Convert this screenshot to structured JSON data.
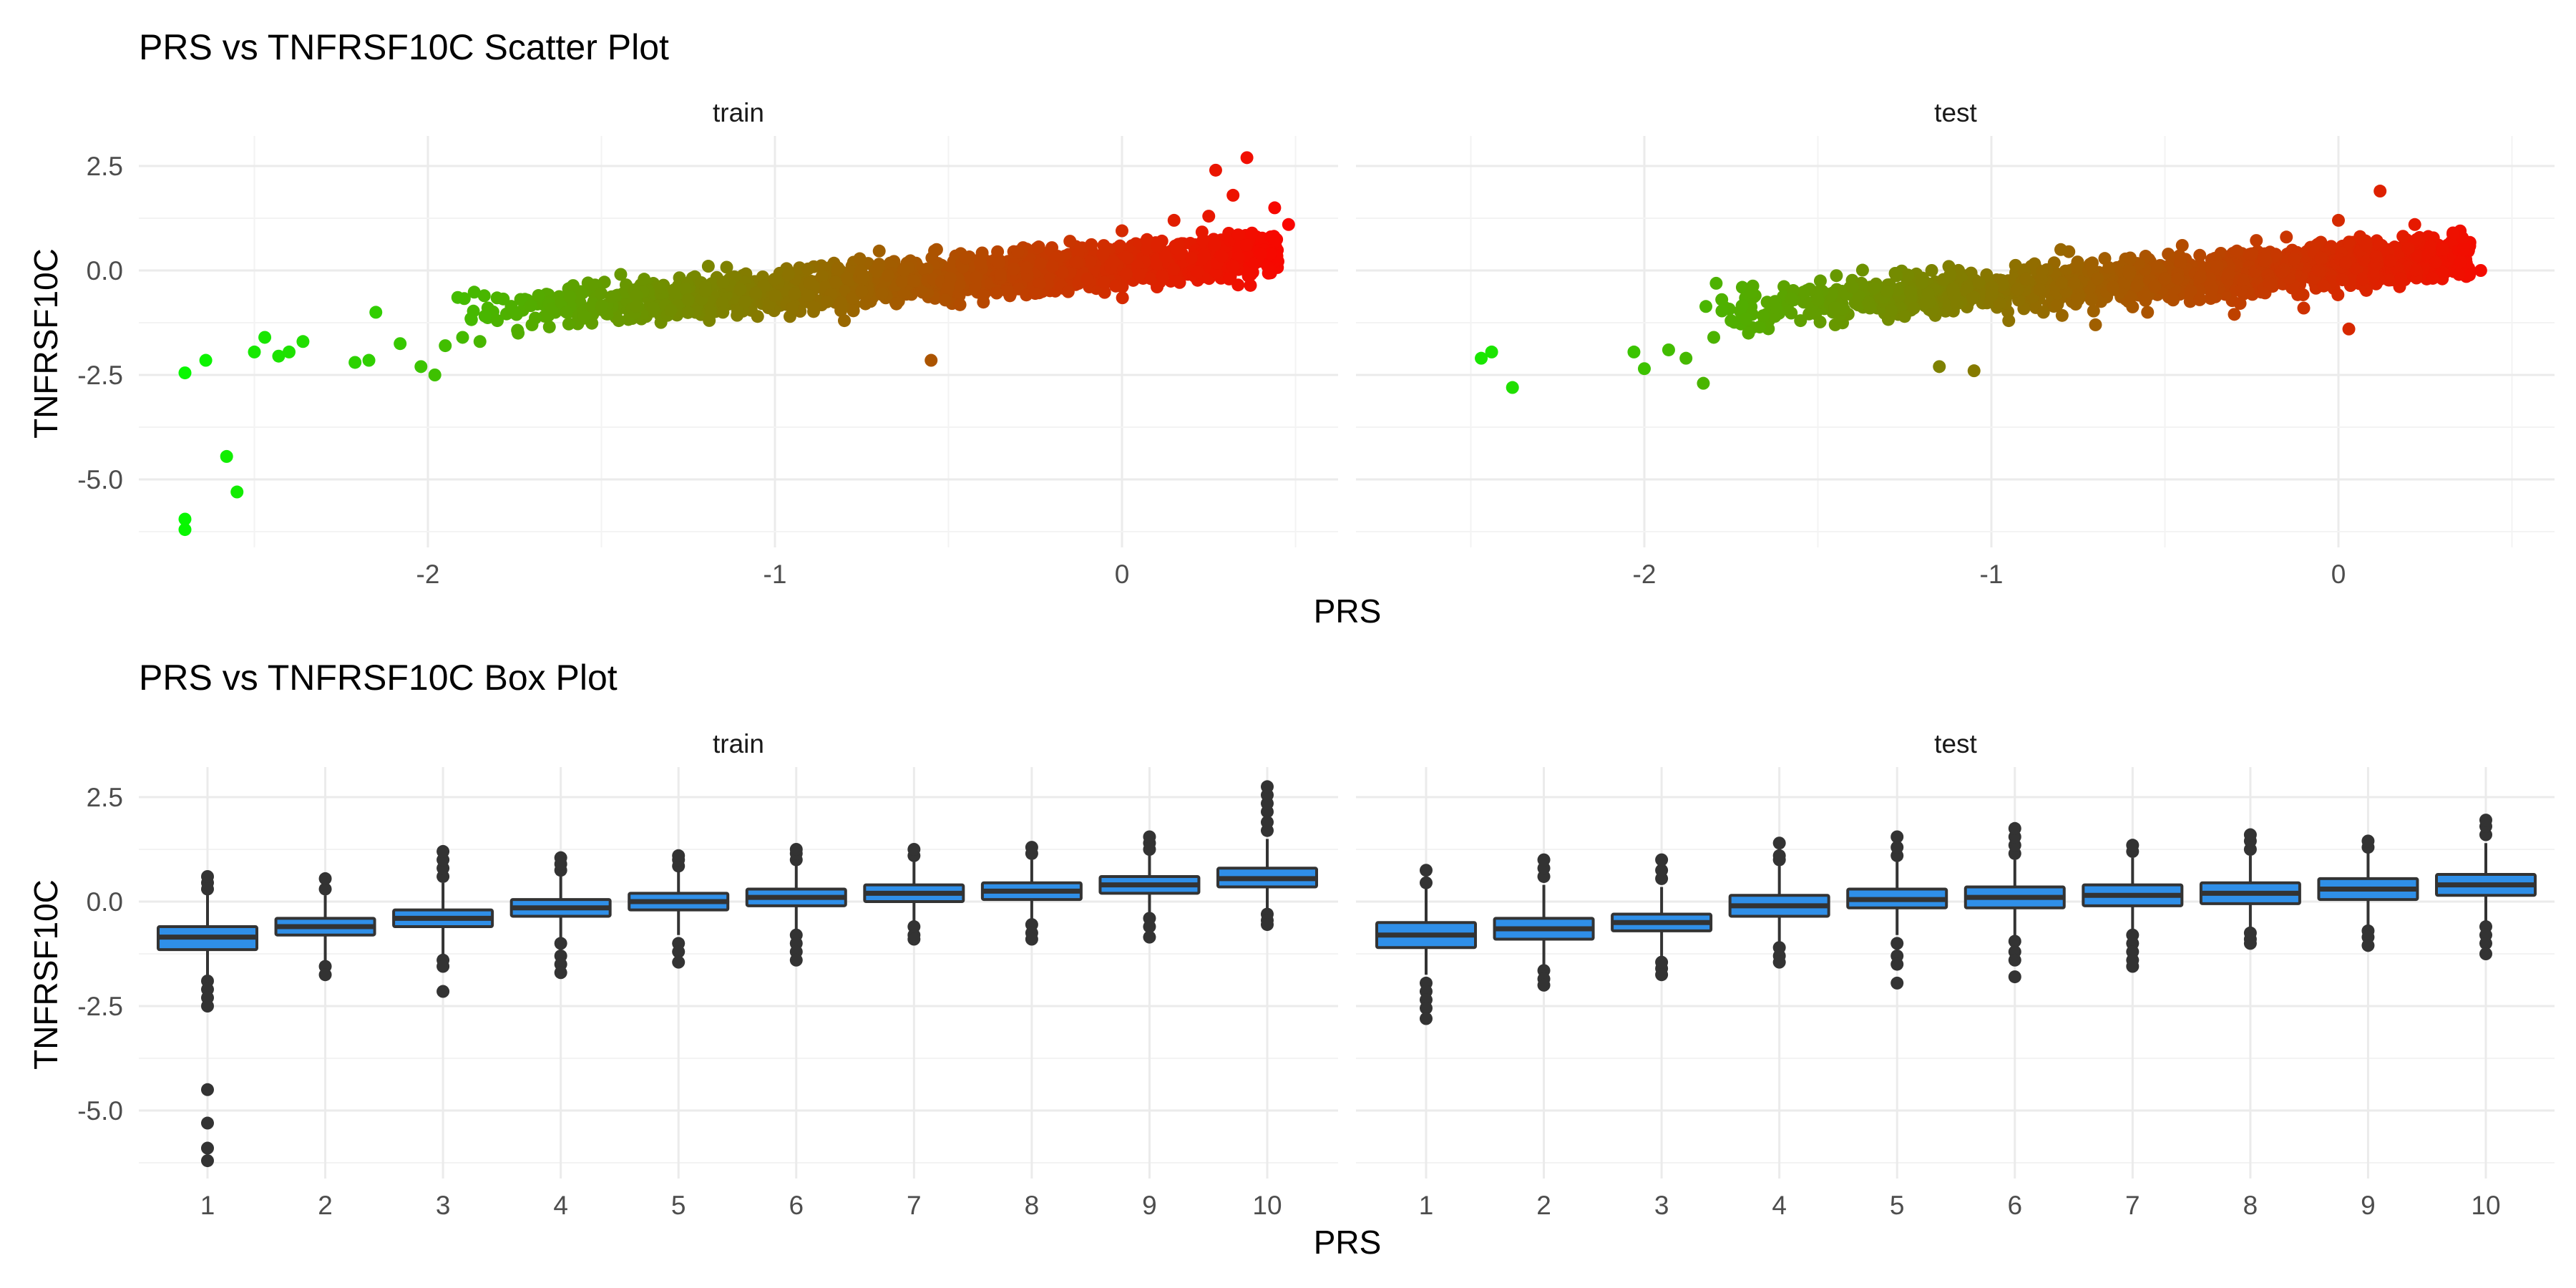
{
  "chart_data": [
    {
      "type": "scatter",
      "title": "PRS vs TNFRSF10C Scatter Plot",
      "xlabel": "PRS",
      "ylabel": "TNFRSF10C",
      "facets": [
        {
          "label": "train",
          "xlim": [
            -2.8,
            0.55
          ],
          "ylim": [
            -6.4,
            3.3
          ],
          "xticks": [
            -2,
            -1,
            0
          ],
          "xtick_labels": [
            "-2",
            "-1",
            "0"
          ],
          "yticks": [
            2.5,
            0.0,
            -2.5,
            -5.0
          ],
          "ytick_labels": [
            "2.5",
            "0.0",
            "-2.5",
            "-5.0"
          ],
          "points": [
            [
              -2.7,
              -2.45
            ],
            [
              -2.64,
              -2.15
            ],
            [
              -2.58,
              -4.45
            ],
            [
              -2.55,
              -5.3
            ],
            [
              -2.7,
              -5.95
            ],
            [
              -2.7,
              -6.2
            ],
            [
              -2.5,
              -1.95
            ],
            [
              -2.47,
              -1.6
            ],
            [
              -2.43,
              -2.05
            ],
            [
              -2.4,
              -1.95
            ],
            [
              -2.36,
              -1.7
            ],
            [
              -2.21,
              -2.2
            ],
            [
              -2.17,
              -2.15
            ],
            [
              -2.15,
              -1.0
            ],
            [
              -2.08,
              -1.75
            ],
            [
              -2.02,
              -2.3
            ],
            [
              -1.98,
              -2.5
            ],
            [
              -1.95,
              -1.8
            ],
            [
              -1.9,
              -1.6
            ],
            [
              -1.85,
              -1.7
            ],
            [
              -1.8,
              -1.2
            ],
            [
              -1.74,
              -1.5
            ],
            [
              -1.7,
              -1.3
            ],
            [
              -1.65,
              -1.35
            ],
            [
              -1.6,
              -1.0
            ],
            [
              -1.55,
              -1.1
            ],
            [
              -1.5,
              -0.85
            ],
            [
              -1.45,
              -1.2
            ],
            [
              -1.4,
              -0.6
            ],
            [
              -1.35,
              -0.9
            ],
            [
              -1.3,
              -0.95
            ],
            [
              -1.25,
              -0.7
            ],
            [
              -1.2,
              -0.5
            ],
            [
              -1.15,
              -1.0
            ],
            [
              -1.1,
              -0.45
            ],
            [
              -1.05,
              -1.1
            ],
            [
              -1.0,
              -0.6
            ],
            [
              -0.95,
              -0.9
            ],
            [
              -0.9,
              -0.3
            ],
            [
              -0.85,
              -0.75
            ],
            [
              -0.8,
              -1.2
            ],
            [
              -0.75,
              -0.5
            ],
            [
              -0.7,
              0.15
            ],
            [
              -0.65,
              -0.8
            ],
            [
              -0.6,
              -0.25
            ],
            [
              -0.55,
              -2.15
            ],
            [
              -0.5,
              -0.4
            ],
            [
              -0.45,
              0.3
            ],
            [
              -0.4,
              -0.6
            ],
            [
              -0.35,
              -0.1
            ],
            [
              -0.3,
              0.45
            ],
            [
              -0.25,
              -0.55
            ],
            [
              -0.2,
              0.1
            ],
            [
              -0.15,
              0.7
            ],
            [
              -0.1,
              -0.2
            ],
            [
              -0.05,
              0.5
            ],
            [
              0.0,
              0.95
            ],
            [
              0.05,
              -0.1
            ],
            [
              0.1,
              0.6
            ],
            [
              0.15,
              1.2
            ],
            [
              0.2,
              0.3
            ],
            [
              0.25,
              1.3
            ],
            [
              0.27,
              2.4
            ],
            [
              0.32,
              1.8
            ],
            [
              0.36,
              2.7
            ],
            [
              0.4,
              0.4
            ],
            [
              0.44,
              1.5
            ],
            [
              0.48,
              1.1
            ]
          ]
        },
        {
          "label": "test",
          "xlim": [
            -2.8,
            0.55
          ],
          "ylim": [
            -6.4,
            3.3
          ],
          "xticks": [
            -2,
            -1,
            0
          ],
          "xtick_labels": [
            "-2",
            "-1",
            "0"
          ],
          "yticks": [
            2.5,
            0.0,
            -2.5,
            -5.0
          ],
          "ytick_labels": [
            "2.5",
            "0.0",
            "-2.5",
            "-5.0"
          ],
          "points": [
            [
              -2.47,
              -2.1
            ],
            [
              -2.44,
              -1.95
            ],
            [
              -2.38,
              -2.8
            ],
            [
              -2.03,
              -1.95
            ],
            [
              -2.0,
              -2.35
            ],
            [
              -1.93,
              -1.9
            ],
            [
              -1.88,
              -2.1
            ],
            [
              -1.83,
              -2.7
            ],
            [
              -1.8,
              -1.6
            ],
            [
              -1.75,
              -1.2
            ],
            [
              -1.7,
              -1.5
            ],
            [
              -1.62,
              -0.9
            ],
            [
              -1.55,
              -1.2
            ],
            [
              -1.5,
              -0.7
            ],
            [
              -1.45,
              -1.3
            ],
            [
              -1.4,
              -0.4
            ],
            [
              -1.35,
              -0.9
            ],
            [
              -1.3,
              -0.5
            ],
            [
              -1.25,
              -1.1
            ],
            [
              -1.2,
              -0.3
            ],
            [
              -1.15,
              -2.3
            ],
            [
              -1.1,
              -0.8
            ],
            [
              -1.05,
              -2.4
            ],
            [
              -1.0,
              -0.6
            ],
            [
              -0.95,
              -1.2
            ],
            [
              -0.9,
              -0.2
            ],
            [
              -0.85,
              -1.0
            ],
            [
              -0.8,
              0.5
            ],
            [
              -0.75,
              -0.7
            ],
            [
              -0.7,
              -1.3
            ],
            [
              -0.65,
              -0.4
            ],
            [
              -0.6,
              0.3
            ],
            [
              -0.55,
              -1.0
            ],
            [
              -0.5,
              -0.2
            ],
            [
              -0.45,
              0.6
            ],
            [
              -0.4,
              -0.7
            ],
            [
              -0.35,
              0.1
            ],
            [
              -0.3,
              -1.05
            ],
            [
              -0.25,
              0.4
            ],
            [
              -0.2,
              -0.3
            ],
            [
              -0.15,
              0.8
            ],
            [
              -0.1,
              -0.9
            ],
            [
              -0.05,
              0.3
            ],
            [
              0.0,
              1.2
            ],
            [
              0.03,
              -1.4
            ],
            [
              0.08,
              0.6
            ],
            [
              0.12,
              1.9
            ],
            [
              0.18,
              -0.2
            ],
            [
              0.22,
              1.1
            ],
            [
              0.28,
              0.2
            ],
            [
              0.33,
              0.9
            ],
            [
              0.36,
              0.5
            ],
            [
              0.41,
              0.0
            ]
          ]
        }
      ]
    },
    {
      "type": "box",
      "title": "PRS vs TNFRSF10C Box Plot",
      "xlabel": "PRS",
      "ylabel": "TNFRSF10C",
      "facets": [
        {
          "label": "train",
          "categories": [
            "1",
            "2",
            "3",
            "4",
            "5",
            "6",
            "7",
            "8",
            "9",
            "10"
          ],
          "ylim": [
            -6.4,
            3.3
          ],
          "yticks": [
            2.5,
            0.0,
            -2.5,
            -5.0
          ],
          "ytick_labels": [
            "2.5",
            "0.0",
            "-2.5",
            "-5.0"
          ],
          "boxes": [
            {
              "q1": -1.15,
              "median": -0.85,
              "q3": -0.6,
              "low": -1.9,
              "high": 0.2,
              "outliers": [
                0.3,
                0.45,
                0.6,
                -1.9,
                -2.1,
                -2.3,
                -2.5,
                -4.5,
                -5.3,
                -5.9,
                -6.2
              ]
            },
            {
              "q1": -0.8,
              "median": -0.6,
              "q3": -0.4,
              "low": -1.5,
              "high": 0.15,
              "outliers": [
                0.3,
                0.55,
                -1.55,
                -1.75
              ]
            },
            {
              "q1": -0.6,
              "median": -0.4,
              "q3": -0.2,
              "low": -1.3,
              "high": 0.45,
              "outliers": [
                0.6,
                0.8,
                1.0,
                1.2,
                -1.4,
                -1.55,
                -2.15
              ]
            },
            {
              "q1": -0.35,
              "median": -0.15,
              "q3": 0.05,
              "low": -0.9,
              "high": 0.6,
              "outliers": [
                0.75,
                0.9,
                1.05,
                -1.0,
                -1.3,
                -1.5,
                -1.7
              ]
            },
            {
              "q1": -0.2,
              "median": 0.0,
              "q3": 0.2,
              "low": -0.8,
              "high": 0.75,
              "outliers": [
                0.85,
                1.0,
                1.1,
                -1.0,
                -1.2,
                -1.45
              ]
            },
            {
              "q1": -0.1,
              "median": 0.1,
              "q3": 0.3,
              "low": -0.7,
              "high": 0.9,
              "outliers": [
                1.0,
                1.15,
                1.25,
                -0.8,
                -1.0,
                -1.2,
                -1.4
              ]
            },
            {
              "q1": 0.0,
              "median": 0.2,
              "q3": 0.4,
              "low": -0.55,
              "high": 0.95,
              "outliers": [
                1.1,
                1.25,
                -0.6,
                -0.8,
                -0.9
              ]
            },
            {
              "q1": 0.05,
              "median": 0.25,
              "q3": 0.45,
              "low": -0.5,
              "high": 1.0,
              "outliers": [
                1.15,
                1.3,
                -0.55,
                -0.75,
                -0.9
              ]
            },
            {
              "q1": 0.2,
              "median": 0.4,
              "q3": 0.6,
              "low": -0.35,
              "high": 1.15,
              "outliers": [
                1.25,
                1.4,
                1.55,
                -0.4,
                -0.6,
                -0.85
              ]
            },
            {
              "q1": 0.35,
              "median": 0.55,
              "q3": 0.8,
              "low": -0.25,
              "high": 1.5,
              "outliers": [
                1.7,
                1.9,
                2.15,
                2.35,
                2.55,
                2.75,
                -0.3,
                -0.45,
                -0.55
              ]
            }
          ]
        },
        {
          "label": "test",
          "categories": [
            "1",
            "2",
            "3",
            "4",
            "5",
            "6",
            "7",
            "8",
            "9",
            "10"
          ],
          "ylim": [
            -6.4,
            3.3
          ],
          "yticks": [
            2.5,
            0.0,
            -2.5,
            -5.0
          ],
          "ytick_labels": [
            "2.5",
            "0.0",
            "-2.5",
            "-5.0"
          ],
          "boxes": [
            {
              "q1": -1.1,
              "median": -0.8,
              "q3": -0.5,
              "low": -1.75,
              "high": 0.3,
              "outliers": [
                0.45,
                0.75,
                -1.95,
                -2.15,
                -2.35,
                -2.55,
                -2.8
              ]
            },
            {
              "q1": -0.9,
              "median": -0.65,
              "q3": -0.4,
              "low": -1.55,
              "high": 0.4,
              "outliers": [
                0.6,
                0.8,
                1.0,
                -1.65,
                -1.85,
                -2.0
              ]
            },
            {
              "q1": -0.7,
              "median": -0.5,
              "q3": -0.3,
              "low": -1.3,
              "high": 0.35,
              "outliers": [
                0.55,
                0.75,
                1.0,
                -1.45,
                -1.6,
                -1.75
              ]
            },
            {
              "q1": -0.35,
              "median": -0.1,
              "q3": 0.15,
              "low": -0.95,
              "high": 0.85,
              "outliers": [
                1.0,
                1.1,
                1.4,
                -1.1,
                -1.3,
                -1.45
              ]
            },
            {
              "q1": -0.15,
              "median": 0.05,
              "q3": 0.3,
              "low": -0.8,
              "high": 0.95,
              "outliers": [
                1.1,
                1.3,
                1.55,
                -1.0,
                -1.3,
                -1.5,
                -1.95
              ]
            },
            {
              "q1": -0.15,
              "median": 0.1,
              "q3": 0.35,
              "low": -0.85,
              "high": 1.0,
              "outliers": [
                1.15,
                1.35,
                1.55,
                1.75,
                -0.95,
                -1.2,
                -1.4,
                -1.8
              ]
            },
            {
              "q1": -0.1,
              "median": 0.15,
              "q3": 0.4,
              "low": -0.7,
              "high": 1.05,
              "outliers": [
                1.2,
                1.35,
                -0.8,
                -1.0,
                -1.2,
                -1.4,
                -1.55
              ]
            },
            {
              "q1": -0.05,
              "median": 0.2,
              "q3": 0.45,
              "low": -0.65,
              "high": 1.1,
              "outliers": [
                1.25,
                1.45,
                1.6,
                -0.75,
                -0.9,
                -1.0
              ]
            },
            {
              "q1": 0.05,
              "median": 0.3,
              "q3": 0.55,
              "low": -0.55,
              "high": 1.2,
              "outliers": [
                1.3,
                1.45,
                -0.7,
                -0.85,
                -1.05
              ]
            },
            {
              "q1": 0.15,
              "median": 0.4,
              "q3": 0.65,
              "low": -0.5,
              "high": 1.4,
              "outliers": [
                1.6,
                1.8,
                1.95,
                -0.6,
                -0.8,
                -1.0,
                -1.25
              ]
            }
          ]
        }
      ]
    }
  ],
  "colors": {
    "low": "#00ff00",
    "high": "#ff0000",
    "box_fill": "#2f8fe8",
    "box_line": "#333333",
    "grid_major": "#ebebeb",
    "grid_minor": "#f3f3f3"
  }
}
